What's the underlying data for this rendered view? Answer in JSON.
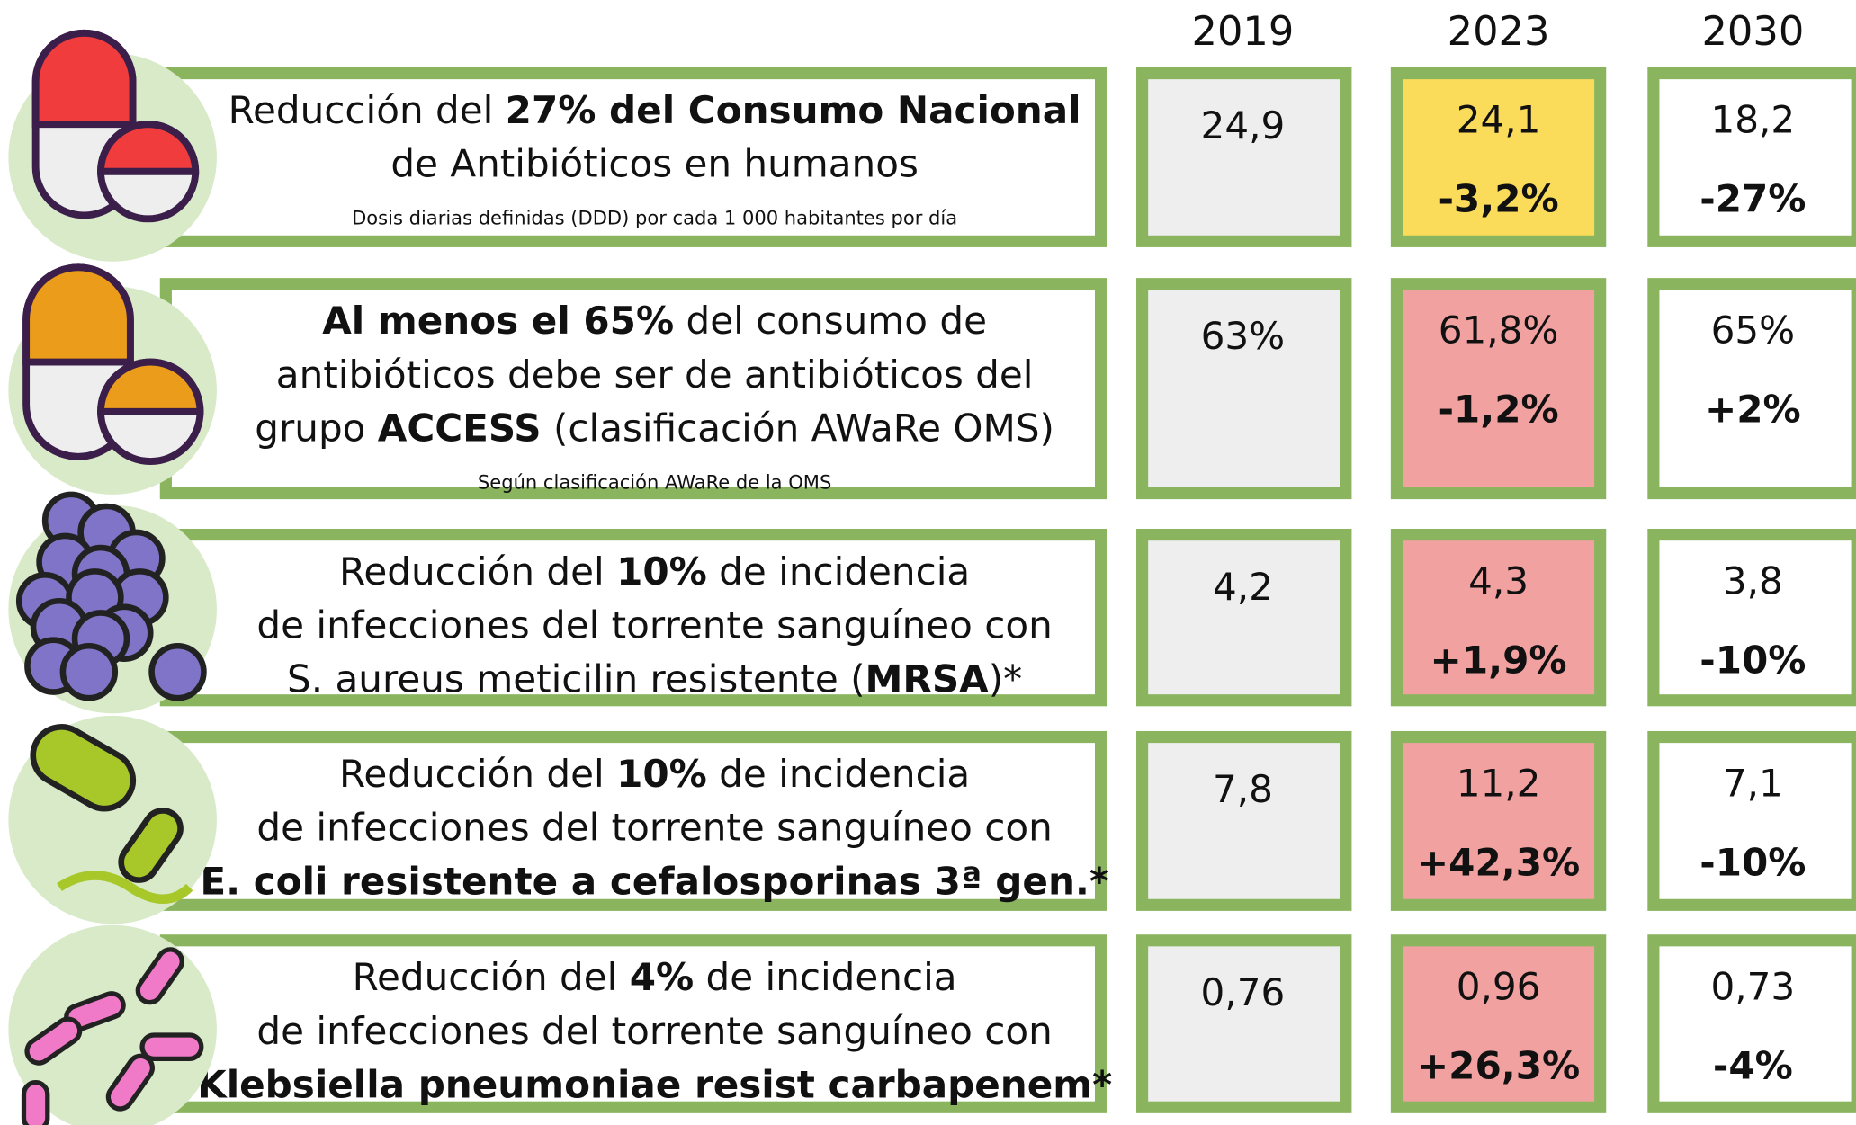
{
  "header": {
    "years": [
      "2019",
      "2023",
      "2030"
    ]
  },
  "rows": [
    {
      "lines": [
        [
          {
            "t": "Reducción del "
          },
          {
            "t": "27% del Consumo Nacional",
            "b": true
          }
        ],
        [
          {
            "t": "de Antibióticos en humanos"
          }
        ]
      ],
      "note": "Dosis diarias definidas (DDD) por cada 1 000 habitantes por día",
      "v2019": "24,9",
      "v2023": "24,1",
      "d2023": "-3,2%",
      "v2030": "18,2",
      "d2030": "-27%",
      "color2023": "#fadc5a"
    },
    {
      "lines": [
        [
          {
            "t": "Al menos el 65%",
            "b": true
          },
          {
            "t": " del consumo de"
          }
        ],
        [
          {
            "t": "antibióticos debe ser de antibióticos del"
          }
        ],
        [
          {
            "t": "grupo "
          },
          {
            "t": "ACCESS",
            "b": true
          },
          {
            "t": " (clasificación AWaRe OMS)"
          }
        ]
      ],
      "note": "Según clasificación AWaRe de la OMS",
      "v2019": "63%",
      "v2023": "61,8%",
      "d2023": "-1,2%",
      "v2030": "65%",
      "d2030": "+2%",
      "color2023": "#f2a1a1"
    },
    {
      "lines": [
        [
          {
            "t": "Reducción del "
          },
          {
            "t": "10%",
            "b": true
          },
          {
            "t": " de incidencia"
          }
        ],
        [
          {
            "t": "de infecciones del torrente sanguíneo con"
          }
        ],
        [
          {
            "t": "S. aureus meticilin resistente ("
          },
          {
            "t": "MRSA",
            "b": true
          },
          {
            "t": ")*"
          }
        ]
      ],
      "v2019": "4,2",
      "v2023": "4,3",
      "d2023": "+1,9%",
      "v2030": "3,8",
      "d2030": "-10%",
      "color2023": "#f2a1a1"
    },
    {
      "lines": [
        [
          {
            "t": "Reducción del "
          },
          {
            "t": "10%",
            "b": true
          },
          {
            "t": " de incidencia"
          }
        ],
        [
          {
            "t": "de infecciones del torrente sanguíneo con"
          }
        ],
        [
          {
            "t": "E. coli resistente a cefalosporinas 3ª gen.*",
            "b": true
          }
        ]
      ],
      "v2019": "7,8",
      "v2023": "11,2",
      "d2023": "+42,3%",
      "v2030": "7,1",
      "d2030": "-10%",
      "color2023": "#f2a1a1"
    },
    {
      "lines": [
        [
          {
            "t": "Reducción del "
          },
          {
            "t": "4%",
            "b": true
          },
          {
            "t": " de incidencia"
          }
        ],
        [
          {
            "t": "de infecciones del torrente sanguíneo con"
          }
        ],
        [
          {
            "t": "Klebsiella pneumoniae resist carbapenem*",
            "b": true
          }
        ]
      ],
      "v2019": "0,76",
      "v2023": "0,96",
      "d2023": "+26,3%",
      "v2030": "0,73",
      "d2030": "-4%",
      "color2023": "#f2a1a1"
    }
  ]
}
